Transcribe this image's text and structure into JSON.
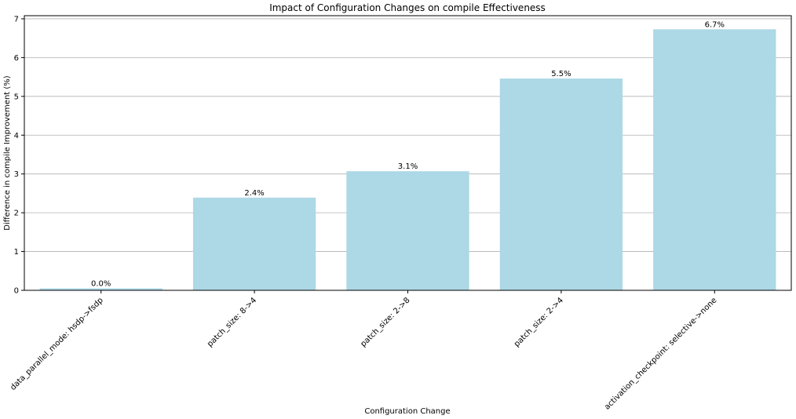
{
  "chart_data": {
    "type": "bar",
    "title": "Impact of Configuration Changes on compile Effectiveness",
    "xlabel": "Configuration Change",
    "ylabel": "Difference in compile Improvement (%)",
    "categories": [
      "data_parallel_mode: hsdp->fsdp",
      "patch_size: 8->4",
      "patch_size: 2->8",
      "patch_size: 2->4",
      "activation_checkpoint: selective->none"
    ],
    "values": [
      0.05,
      2.39,
      3.07,
      5.46,
      6.73
    ],
    "data_labels": [
      "0.0%",
      "2.4%",
      "3.1%",
      "5.5%",
      "6.7%"
    ],
    "ylim": [
      0,
      7.08
    ],
    "yticks": [
      0,
      1,
      2,
      3,
      4,
      5,
      6,
      7
    ],
    "grid": "y",
    "legend": "none",
    "colors": {
      "bar": "#add8e6",
      "grid": "#b0b0b0",
      "axis": "#000000"
    }
  }
}
